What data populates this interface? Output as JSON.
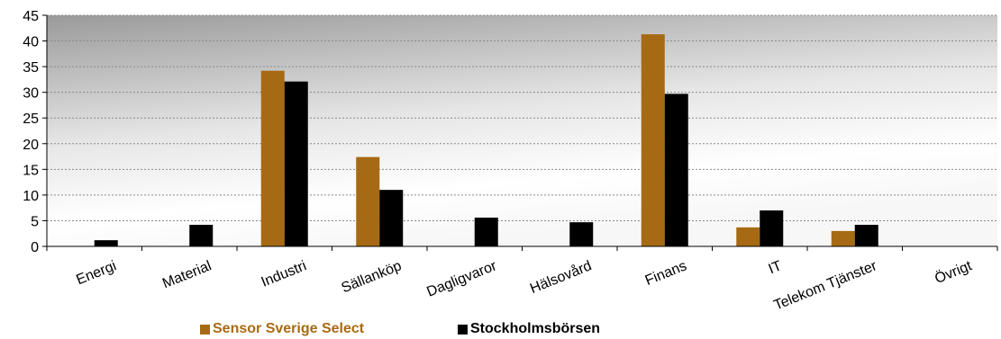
{
  "chart_data": {
    "type": "bar",
    "categories": [
      "Energi",
      "Material",
      "Industri",
      "Sällanköp",
      "Dagligvaror",
      "Hälsovård",
      "Finans",
      "IT",
      "Telekom Tjänster",
      "Övrigt"
    ],
    "series": [
      {
        "name": "Sensor Sverige Select",
        "color": "#A76A14",
        "values": [
          0,
          0,
          34.2,
          17.4,
          0,
          0,
          41.3,
          3.7,
          3.0,
          0
        ]
      },
      {
        "name": "Stockholmsbörsen",
        "color": "#000000",
        "values": [
          1.2,
          4.2,
          32.1,
          11.0,
          5.6,
          4.7,
          29.7,
          7.0,
          4.2,
          0
        ]
      }
    ],
    "ylim": [
      0,
      45
    ],
    "yticks": [
      0,
      5,
      10,
      15,
      20,
      25,
      30,
      35,
      40,
      45
    ],
    "grid": true,
    "legend_position": "bottom",
    "plot_background": "gray-gradient"
  }
}
